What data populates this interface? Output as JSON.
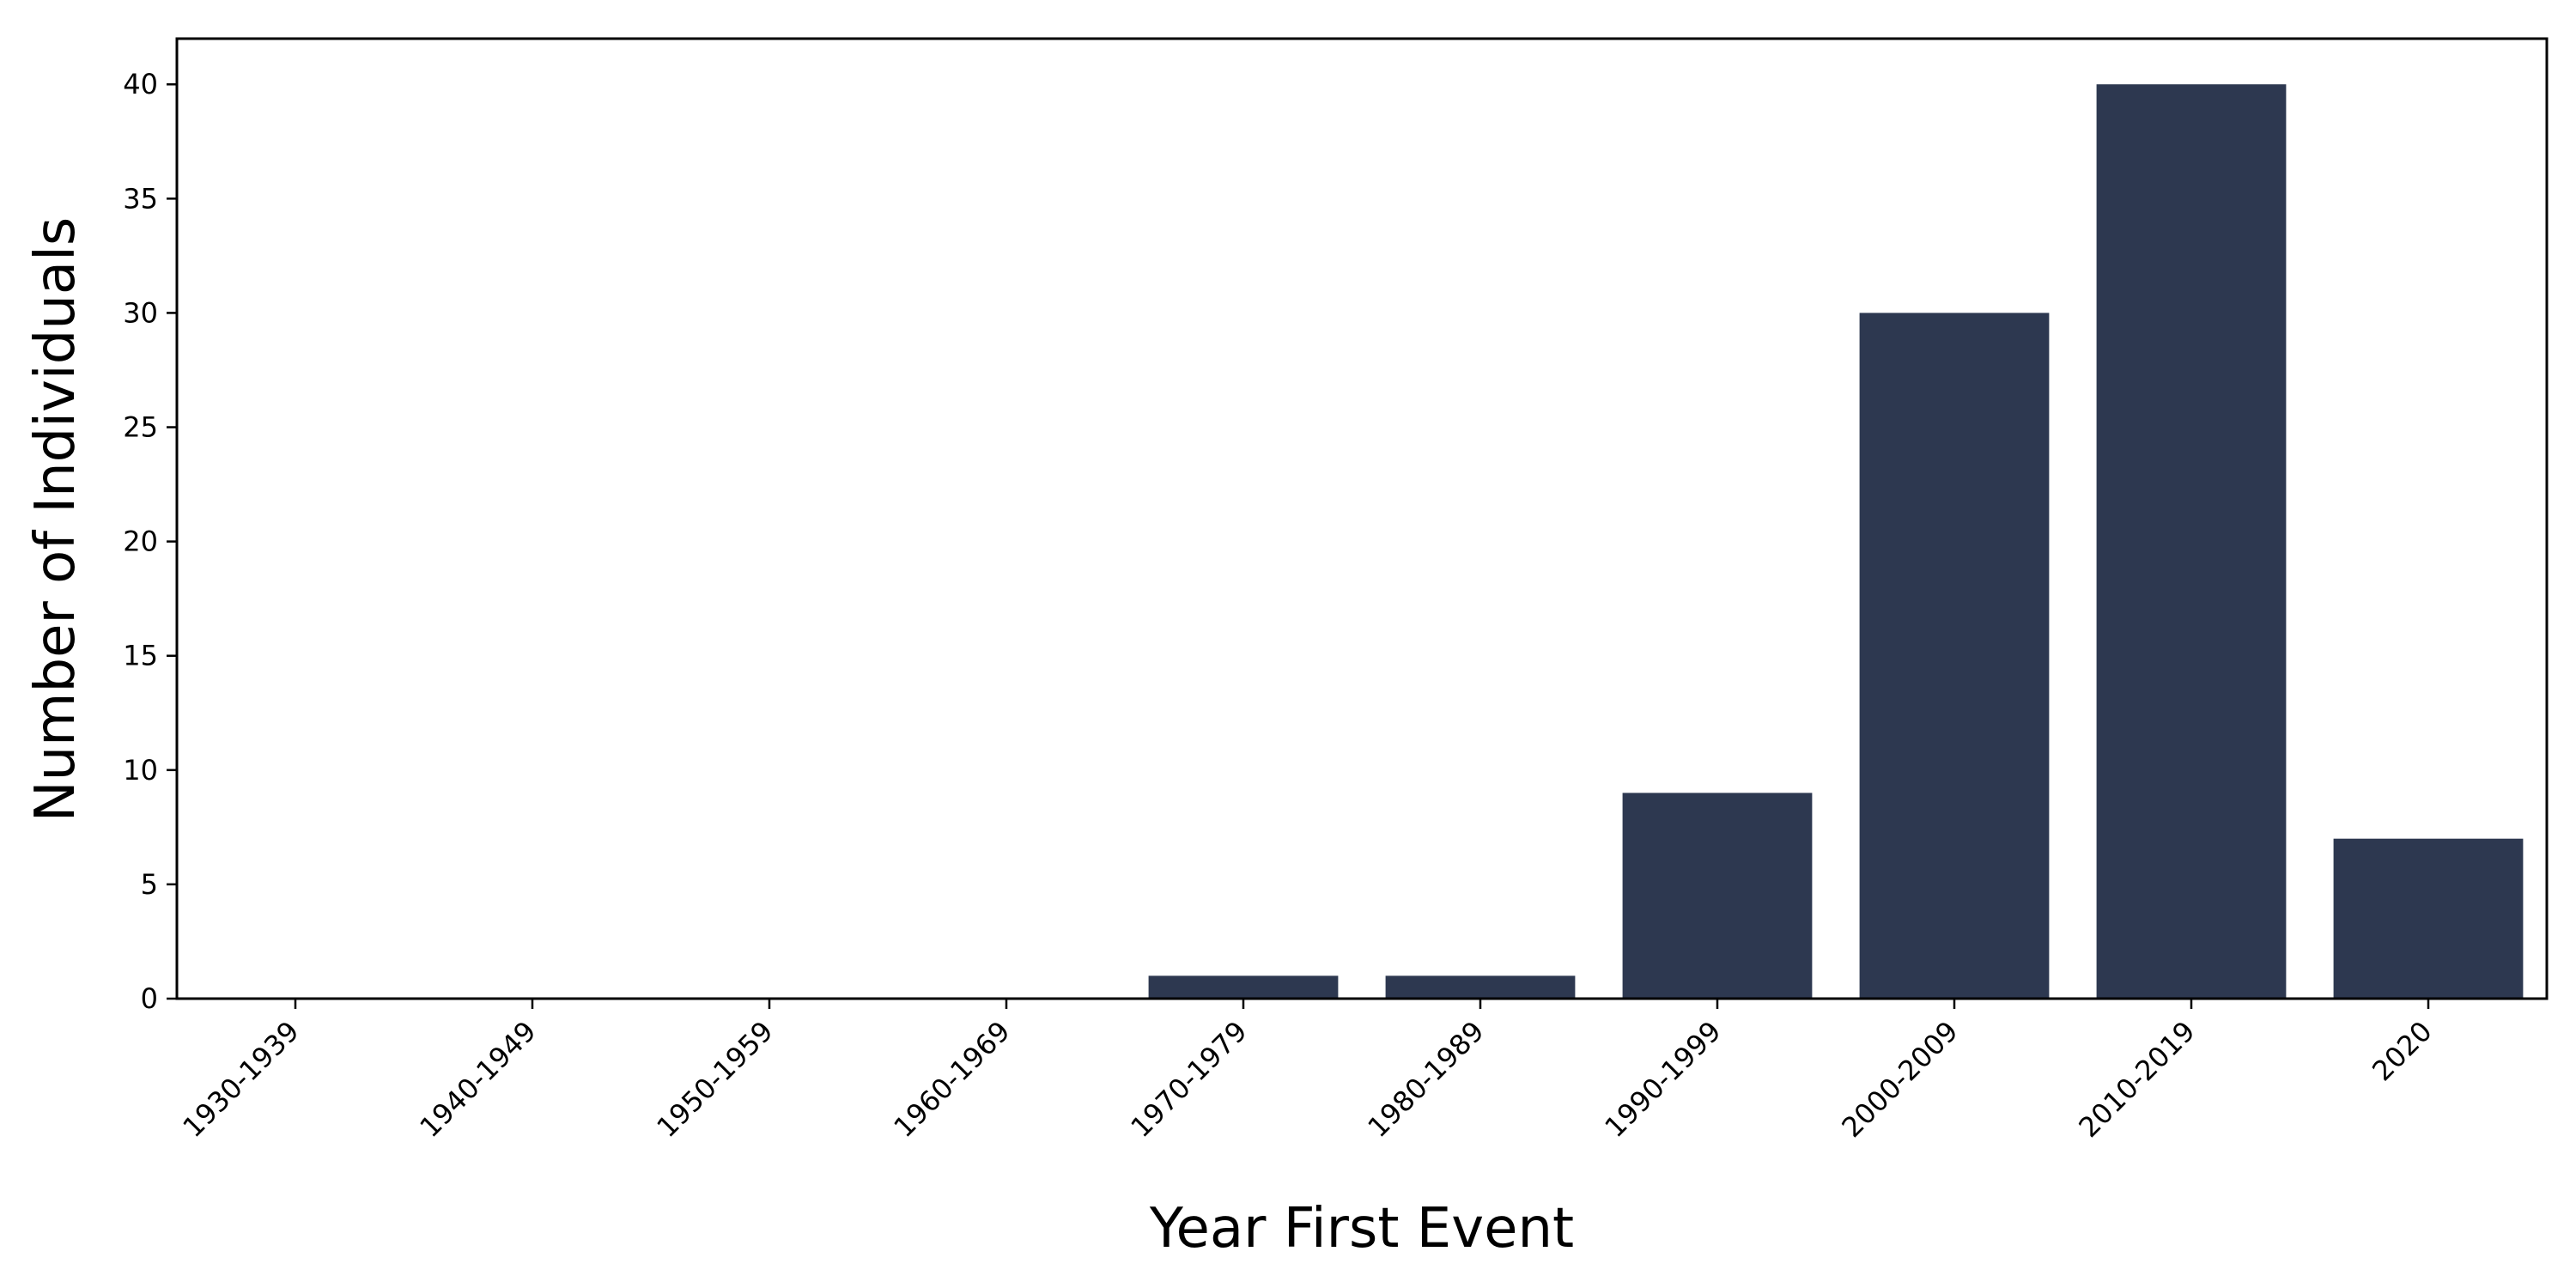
{
  "chart_data": {
    "type": "bar",
    "title": "",
    "xlabel": "Year First Event",
    "ylabel": "Number of Individuals",
    "categories": [
      "1930-1939",
      "1940-1949",
      "1950-1959",
      "1960-1969",
      "1970-1979",
      "1980-1989",
      "1990-1999",
      "2000-2009",
      "2010-2019",
      "2020"
    ],
    "values": [
      0,
      0,
      0,
      0,
      1,
      1,
      9,
      30,
      40,
      7
    ],
    "ylim": [
      0,
      42
    ],
    "yticks": [
      0,
      5,
      10,
      15,
      20,
      25,
      30,
      35,
      40
    ],
    "grid": false,
    "legend": "none",
    "bar_color": "#2d3850"
  }
}
